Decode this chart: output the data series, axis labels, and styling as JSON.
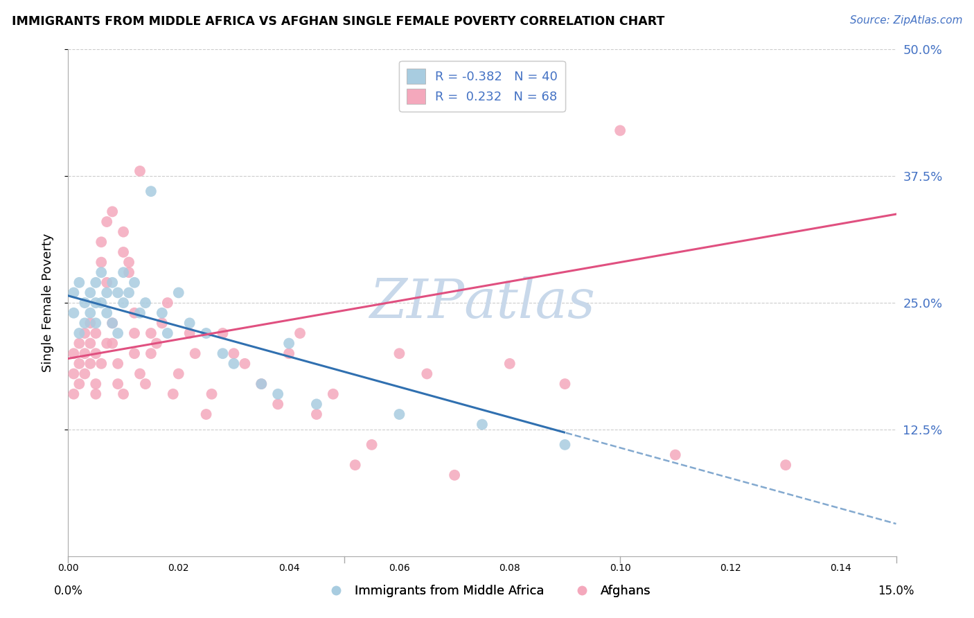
{
  "title": "IMMIGRANTS FROM MIDDLE AFRICA VS AFGHAN SINGLE FEMALE POVERTY CORRELATION CHART",
  "source": "Source: ZipAtlas.com",
  "ylabel": "Single Female Poverty",
  "ytick_values": [
    0.125,
    0.25,
    0.375,
    0.5
  ],
  "ytick_labels": [
    "12.5%",
    "25.0%",
    "37.5%",
    "50.0%"
  ],
  "xmin": 0.0,
  "xmax": 0.15,
  "ymin": 0.0,
  "ymax": 0.5,
  "legend_blue_label": "R = -0.382   N = 40",
  "legend_pink_label": "R =  0.232   N = 68",
  "legend_bottom_blue": "Immigrants from Middle Africa",
  "legend_bottom_pink": "Afghans",
  "blue_color": "#a8cce0",
  "pink_color": "#f4a8bc",
  "blue_line_color": "#3070b0",
  "pink_line_color": "#e05080",
  "watermark_color": "#c8d8ea",
  "background_color": "#ffffff",
  "grid_color": "#cccccc",
  "blue_intercept": 0.257,
  "blue_slope": -1.5,
  "pink_intercept": 0.195,
  "pink_slope": 0.95,
  "blue_points_x": [
    0.001,
    0.001,
    0.002,
    0.002,
    0.003,
    0.003,
    0.004,
    0.004,
    0.005,
    0.005,
    0.005,
    0.006,
    0.006,
    0.007,
    0.007,
    0.008,
    0.008,
    0.009,
    0.009,
    0.01,
    0.01,
    0.011,
    0.012,
    0.013,
    0.014,
    0.015,
    0.017,
    0.018,
    0.02,
    0.022,
    0.025,
    0.028,
    0.03,
    0.035,
    0.038,
    0.04,
    0.045,
    0.06,
    0.075,
    0.09
  ],
  "blue_points_y": [
    0.24,
    0.26,
    0.22,
    0.27,
    0.25,
    0.23,
    0.26,
    0.24,
    0.27,
    0.25,
    0.23,
    0.28,
    0.25,
    0.26,
    0.24,
    0.27,
    0.23,
    0.26,
    0.22,
    0.28,
    0.25,
    0.26,
    0.27,
    0.24,
    0.25,
    0.36,
    0.24,
    0.22,
    0.26,
    0.23,
    0.22,
    0.2,
    0.19,
    0.17,
    0.16,
    0.21,
    0.15,
    0.14,
    0.13,
    0.11
  ],
  "pink_points_x": [
    0.001,
    0.001,
    0.001,
    0.002,
    0.002,
    0.002,
    0.003,
    0.003,
    0.003,
    0.004,
    0.004,
    0.004,
    0.005,
    0.005,
    0.005,
    0.005,
    0.006,
    0.006,
    0.006,
    0.007,
    0.007,
    0.007,
    0.008,
    0.008,
    0.008,
    0.009,
    0.009,
    0.01,
    0.01,
    0.01,
    0.011,
    0.011,
    0.012,
    0.012,
    0.012,
    0.013,
    0.013,
    0.014,
    0.015,
    0.015,
    0.016,
    0.017,
    0.018,
    0.019,
    0.02,
    0.022,
    0.023,
    0.025,
    0.026,
    0.028,
    0.03,
    0.032,
    0.035,
    0.038,
    0.04,
    0.042,
    0.045,
    0.048,
    0.052,
    0.055,
    0.06,
    0.065,
    0.07,
    0.08,
    0.09,
    0.1,
    0.11,
    0.13
  ],
  "pink_points_y": [
    0.18,
    0.2,
    0.16,
    0.19,
    0.21,
    0.17,
    0.2,
    0.22,
    0.18,
    0.19,
    0.21,
    0.23,
    0.17,
    0.2,
    0.22,
    0.16,
    0.29,
    0.31,
    0.19,
    0.21,
    0.27,
    0.33,
    0.21,
    0.23,
    0.34,
    0.17,
    0.19,
    0.3,
    0.32,
    0.16,
    0.29,
    0.28,
    0.22,
    0.24,
    0.2,
    0.38,
    0.18,
    0.17,
    0.2,
    0.22,
    0.21,
    0.23,
    0.25,
    0.16,
    0.18,
    0.22,
    0.2,
    0.14,
    0.16,
    0.22,
    0.2,
    0.19,
    0.17,
    0.15,
    0.2,
    0.22,
    0.14,
    0.16,
    0.09,
    0.11,
    0.2,
    0.18,
    0.08,
    0.19,
    0.17,
    0.42,
    0.1,
    0.09
  ]
}
